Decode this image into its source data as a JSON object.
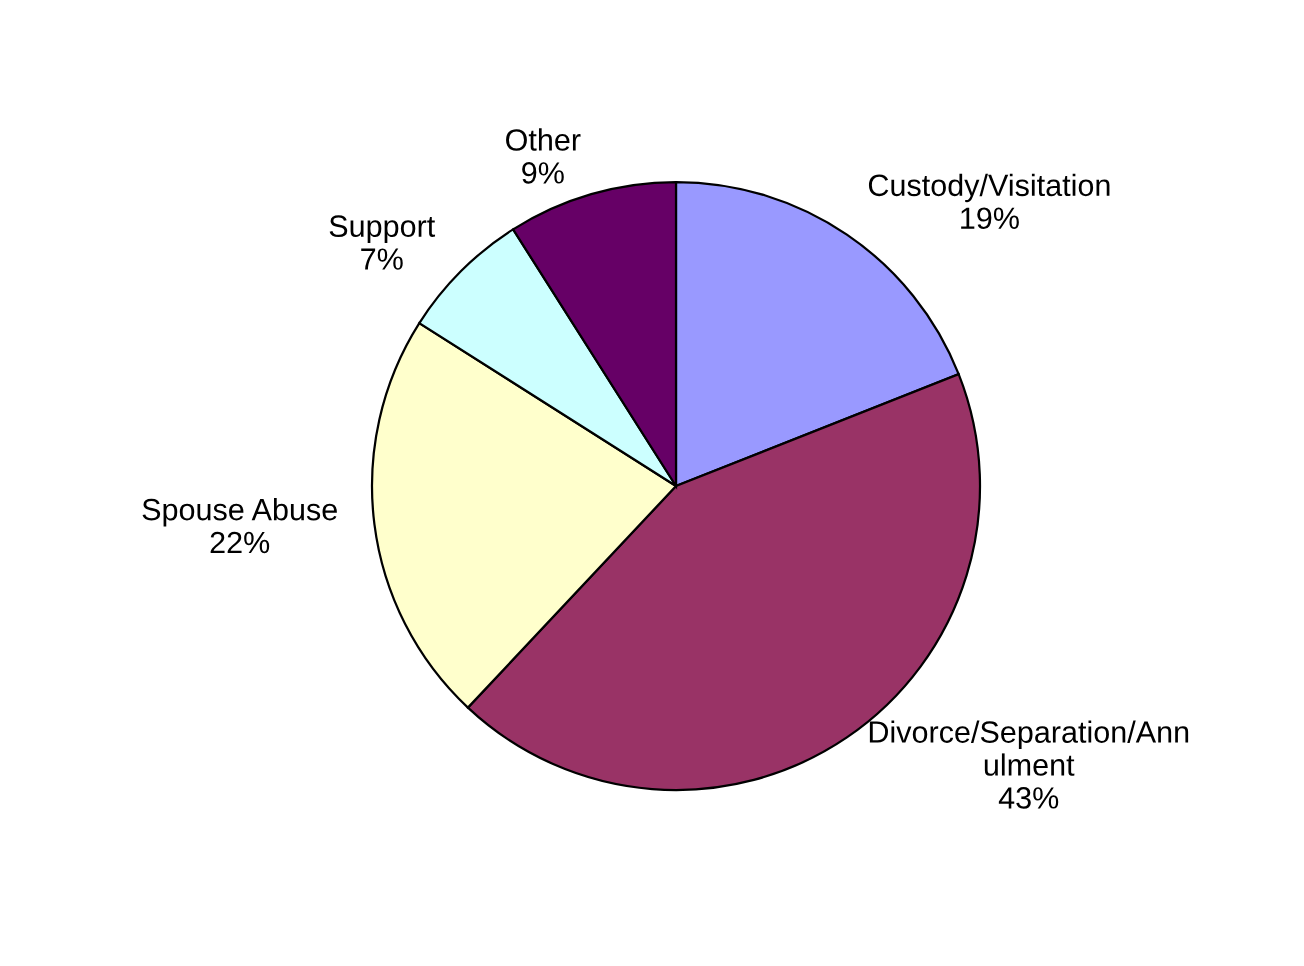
{
  "chart_data": {
    "type": "pie",
    "categories": [
      "Custody/Visitation",
      "Divorce/Separation/Ann\nulment",
      "Spouse Abuse",
      "Support",
      "Other"
    ],
    "values": [
      19,
      43,
      22,
      7,
      9
    ],
    "colors": [
      "#9999ff",
      "#993366",
      "#ffffcc",
      "#ccffff",
      "#660066"
    ],
    "value_labels": [
      "19%",
      "43%",
      "22%",
      "7%",
      "9%"
    ],
    "legend": false
  }
}
